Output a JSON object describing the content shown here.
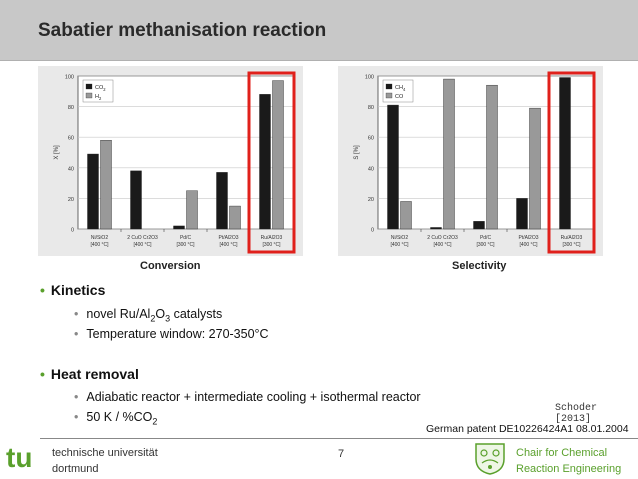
{
  "title": "Sabatier methanisation reaction",
  "chart_data": [
    {
      "type": "bar",
      "ylabel": "X [%]",
      "ylim": [
        0,
        100
      ],
      "yticks": [
        0,
        20,
        40,
        60,
        80,
        100
      ],
      "categories": [
        "Ni/SiO2 [400 °C]",
        "2 CuO Cr2O3 [400 °C]",
        "Pd/C [300 °C]",
        "Pt/Al2O3 [400 °C]",
        "Ru/Al2O3 [300 °C]"
      ],
      "series": [
        {
          "name": "CO2",
          "color": "#1a1a1a",
          "values": [
            49,
            38,
            2,
            37,
            88
          ]
        },
        {
          "name": "H2",
          "color": "#999999",
          "values": [
            58,
            0,
            25,
            15,
            97
          ]
        }
      ],
      "legend": "top-left",
      "highlight_category": 4
    },
    {
      "type": "bar",
      "ylabel": "S [%]",
      "ylim": [
        0,
        100
      ],
      "yticks": [
        0,
        20,
        40,
        60,
        80,
        100
      ],
      "categories": [
        "Ni/SiO2 [400 °C]",
        "2 CuO Cr2O3 [400 °C]",
        "Pd/C [300 °C]",
        "Pt/Al2O3 [400 °C]",
        "Ru/Al2O3 [300 °C]"
      ],
      "series": [
        {
          "name": "CH4",
          "color": "#1a1a1a",
          "values": [
            81,
            1,
            5,
            20,
            99
          ]
        },
        {
          "name": "CO",
          "color": "#999999",
          "values": [
            18,
            98,
            94,
            79,
            0
          ]
        }
      ],
      "legend": "top-left",
      "highlight_category": 4
    }
  ],
  "captions": {
    "left": "Conversion",
    "right": "Selectivity"
  },
  "bullets": {
    "kinetics": {
      "label": "Kinetics",
      "items": [
        "novel Ru/Al2O3 catalysts",
        "Temperature window: 270-350°C"
      ]
    },
    "heat": {
      "label": "Heat removal",
      "items": [
        "Adiabatic reactor + intermediate cooling + isothermal reactor",
        "50 K / %CO2"
      ]
    }
  },
  "note": {
    "line1": "Schoder",
    "line2": "[2013]"
  },
  "patent": "German patent DE10226424A1 08.01.2004",
  "footer": {
    "university_line1": "technische universität",
    "university_line2": "dortmund",
    "page": "7",
    "chair_line1": "Chair for Chemical",
    "chair_line2": "Reaction Engineering",
    "logo_text": "tu"
  },
  "colors": {
    "accent_green": "#5aa02c",
    "highlight_red": "#e0201b",
    "title_bar": "#c8c8c8"
  }
}
